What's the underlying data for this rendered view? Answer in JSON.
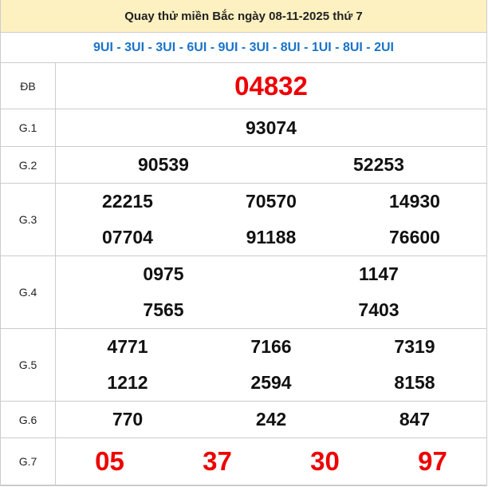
{
  "title": "Quay thử miền Bắc ngày 08-11-2025 thứ 7",
  "codes": "9UI - 3UI - 3UI - 6UI - 9UI - 3UI - 8UI - 1UI - 8UI - 2UI",
  "prizes": [
    {
      "label": "ĐB",
      "rows": [
        [
          "04832"
        ]
      ]
    },
    {
      "label": "G.1",
      "rows": [
        [
          "93074"
        ]
      ]
    },
    {
      "label": "G.2",
      "rows": [
        [
          "90539",
          "52253"
        ]
      ]
    },
    {
      "label": "G.3",
      "rows": [
        [
          "22215",
          "70570",
          "14930"
        ],
        [
          "07704",
          "91188",
          "76600"
        ]
      ]
    },
    {
      "label": "G.4",
      "rows": [
        [
          "0975",
          "1147"
        ],
        [
          "7565",
          "7403"
        ]
      ]
    },
    {
      "label": "G.5",
      "rows": [
        [
          "4771",
          "7166",
          "7319"
        ],
        [
          "1212",
          "2594",
          "8158"
        ]
      ]
    },
    {
      "label": "G.6",
      "rows": [
        [
          "770",
          "242",
          "847"
        ]
      ]
    },
    {
      "label": "G.7",
      "rows": [
        [
          "05",
          "37",
          "30",
          "97"
        ]
      ]
    }
  ],
  "colors": {
    "header_bg": "#fdf1c1",
    "codes": "#1a73c9",
    "highlight": "#e00000"
  }
}
